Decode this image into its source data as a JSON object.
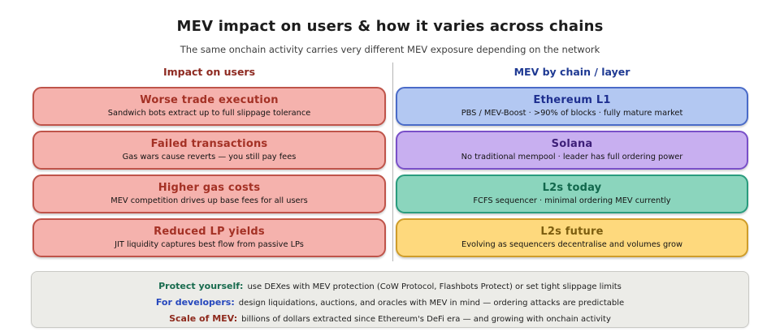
{
  "page": {
    "title": "MEV impact on users & how it varies across chains",
    "subtitle": "The same onchain activity carries very different MEV exposure depending on the network",
    "background_color": "#ffffff",
    "divider_color": "#b5b5b5"
  },
  "left_column": {
    "heading": "Impact on users",
    "heading_color": "#8e2a21",
    "box_bg": "#f5b2ad",
    "box_border": "#bf544a",
    "title_color": "#a43125",
    "items": [
      {
        "title": "Worse trade execution",
        "desc": "Sandwich bots extract up to full slippage tolerance"
      },
      {
        "title": "Failed transactions",
        "desc": "Gas wars cause reverts — you still pay fees"
      },
      {
        "title": "Higher gas costs",
        "desc": "MEV competition drives up base fees for all users"
      },
      {
        "title": "Reduced LP yields",
        "desc": "JIT liquidity captures best flow from passive LPs"
      }
    ]
  },
  "right_column": {
    "heading": "MEV by chain / layer",
    "heading_color": "#1f3a93",
    "items": [
      {
        "title": "Ethereum L1",
        "desc": "PBS / MEV-Boost · >90% of blocks · fully mature market",
        "bg": "#b3c8f2",
        "border": "#4a6bc8",
        "title_color": "#1e2f8f"
      },
      {
        "title": "Solana",
        "desc": "No traditional mempool · leader has full ordering power",
        "bg": "#c8aff0",
        "border": "#7950c8",
        "title_color": "#3d1f78"
      },
      {
        "title": "L2s today",
        "desc": "FCFS sequencer · minimal ordering MEV currently",
        "bg": "#8bd5bd",
        "border": "#2a9c7e",
        "title_color": "#11674c"
      },
      {
        "title": "L2s future",
        "desc": "Evolving as sequencers decentralise and volumes grow",
        "bg": "#fed97d",
        "border": "#cf9d2a",
        "title_color": "#7c5d0f"
      }
    ]
  },
  "footer": {
    "bg": "#ecece8",
    "border": "#c9c9c5",
    "lines": [
      {
        "label": "Protect yourself:",
        "label_color": "#186b4e",
        "text": "use DEXes with MEV protection (CoW Protocol, Flashbots Protect) or set tight slippage limits"
      },
      {
        "label": "For developers:",
        "label_color": "#2547bd",
        "text": "design liquidations, auctions, and oracles with MEV in mind — ordering attacks are predictable"
      },
      {
        "label": "Scale of MEV:",
        "label_color": "#8e2a1d",
        "text": "billions of dollars extracted since Ethereum's DeFi era — and growing with onchain activity"
      }
    ]
  }
}
